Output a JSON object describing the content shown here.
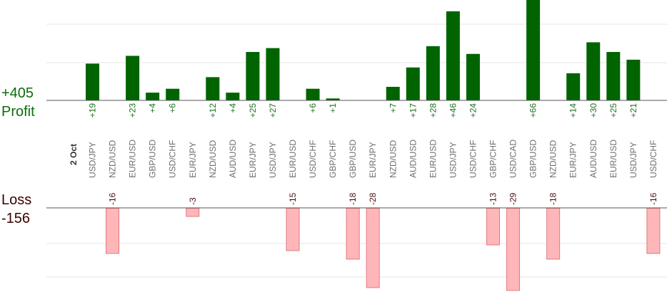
{
  "chart_data": {
    "type": "bar",
    "date_label": "2 Oct",
    "profit_total": "+405",
    "profit_label": "Profit",
    "loss_label": "Loss",
    "loss_total": "-156",
    "colors": {
      "profit_bar": "#006400",
      "loss_fill": "#ffb6b9",
      "loss_stroke": "#e07a80",
      "profit_text": "#1e6e1e",
      "loss_text": "#4a1010",
      "total_profit_text": "#0a6e0a",
      "total_loss_text": "#3a0000",
      "axis": "#555555",
      "grid": "#e6e6e6"
    },
    "categories": [
      "USD/JPY",
      "NZD/USD",
      "EUR/USD",
      "GBP/USD",
      "USD/CHF",
      "EUR/JPY",
      "NZD/USD",
      "AUD/USD",
      "EUR/JPY",
      "USD/JPY",
      "EUR/USD",
      "USD/CHF",
      "GBP/CHF",
      "GBP/USD",
      "EUR/JPY",
      "NZD/USD",
      "AUD/USD",
      "EUR/USD",
      "USD/JPY",
      "USD/CHF",
      "GBP/CHF",
      "USD/CAD",
      "GBP/USD",
      "NZD/USD",
      "EUR/JPY",
      "AUD/USD",
      "EUR/USD",
      "USD/JPY",
      "USD/CHF"
    ],
    "profit_values": [
      19,
      null,
      23,
      4,
      6,
      null,
      12,
      4,
      25,
      27,
      null,
      6,
      1,
      null,
      null,
      7,
      17,
      28,
      46,
      24,
      null,
      null,
      66,
      null,
      14,
      30,
      25,
      21,
      null
    ],
    "profit_labels": [
      "+19",
      "",
      "+23",
      "+4",
      "+6",
      "",
      "+12",
      "+4",
      "+25",
      "+27",
      "",
      "+6",
      "+1",
      "",
      "",
      "+7",
      "+17",
      "+28",
      "+46",
      "+24",
      "",
      "",
      "+66",
      "",
      "+14",
      "+30",
      "+25",
      "+21",
      ""
    ],
    "loss_values": [
      null,
      -16,
      null,
      null,
      null,
      -3,
      null,
      null,
      null,
      null,
      -15,
      null,
      null,
      -18,
      -28,
      null,
      null,
      null,
      null,
      null,
      -13,
      -29,
      null,
      -18,
      null,
      null,
      null,
      null,
      -16
    ],
    "loss_labels": [
      "",
      "-16",
      "",
      "",
      "",
      "-3",
      "",
      "",
      "",
      "",
      "-15",
      "",
      "",
      "-18",
      "-28",
      "",
      "",
      "",
      "",
      "",
      "-13",
      "-29",
      "",
      "-18",
      "",
      "",
      "",
      "",
      "-16"
    ]
  }
}
